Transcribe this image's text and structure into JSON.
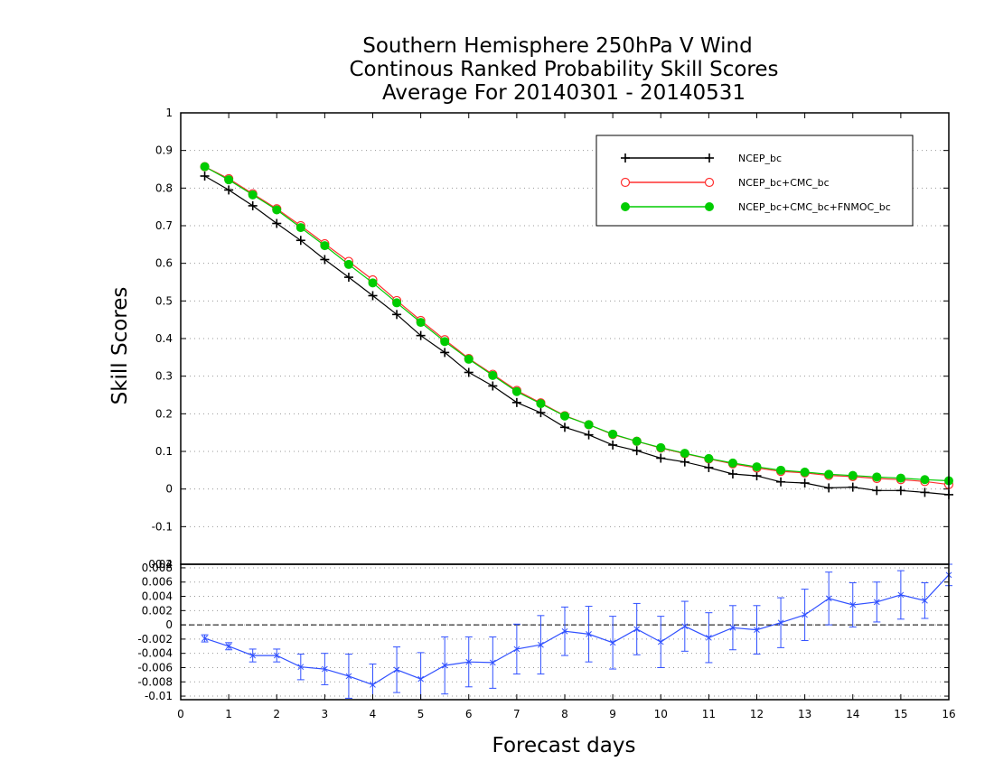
{
  "chart_data": [
    {
      "type": "line",
      "title": [
        "Southern Hemisphere 250hPa V Wind",
        "Continous Ranked Probability Skill Scores",
        "Average For 20140301 - 20140531"
      ],
      "xlabel": "Forecast days",
      "ylabel": "Skill Scores",
      "xlim": [
        0,
        16
      ],
      "ylim": [
        -0.2,
        1
      ],
      "xticks": [
        "0",
        "1",
        "2",
        "3",
        "4",
        "5",
        "6",
        "7",
        "8",
        "9",
        "10",
        "11",
        "12",
        "13",
        "14",
        "15",
        "16"
      ],
      "yticks": [
        "-0.2",
        "-0.1",
        "0",
        "0.1",
        "0.2",
        "0.3",
        "0.4",
        "0.5",
        "0.6",
        "0.7",
        "0.8",
        "0.9",
        "1"
      ],
      "grid": true,
      "legend_position": "top-right",
      "x": [
        0.5,
        1,
        1.5,
        2,
        2.5,
        3,
        3.5,
        4,
        4.5,
        5,
        5.5,
        6,
        6.5,
        7,
        7.5,
        8,
        8.5,
        9,
        9.5,
        10,
        10.5,
        11,
        11.5,
        12,
        12.5,
        13,
        13.5,
        14,
        14.5,
        15,
        15.5,
        16
      ],
      "series": [
        {
          "name": "NCEP_bc",
          "color": "#000000",
          "marker": "plus",
          "values": [
            0.832,
            0.795,
            0.753,
            0.706,
            0.661,
            0.61,
            0.563,
            0.514,
            0.464,
            0.408,
            0.363,
            0.31,
            0.274,
            0.23,
            0.203,
            0.164,
            0.144,
            0.117,
            0.102,
            0.082,
            0.072,
            0.057,
            0.04,
            0.035,
            0.019,
            0.016,
            0.003,
            0.005,
            -0.004,
            -0.004,
            -0.009,
            -0.015
          ]
        },
        {
          "name": "NCEP_bc+CMC_bc",
          "color": "#ff3030",
          "marker": "open-circle",
          "values": [
            0.857,
            0.825,
            0.785,
            0.745,
            0.7,
            0.652,
            0.605,
            0.556,
            0.501,
            0.448,
            0.397,
            0.347,
            0.305,
            0.262,
            0.229,
            0.195,
            0.171,
            0.145,
            0.127,
            0.109,
            0.094,
            0.08,
            0.067,
            0.056,
            0.047,
            0.043,
            0.036,
            0.033,
            0.028,
            0.025,
            0.02,
            0.012
          ]
        },
        {
          "name": "NCEP_bc+CMC_bc+FNMOC_bc",
          "color": "#00cc00",
          "marker": "filled-circle",
          "values": [
            0.857,
            0.822,
            0.782,
            0.742,
            0.695,
            0.647,
            0.597,
            0.548,
            0.495,
            0.443,
            0.392,
            0.345,
            0.302,
            0.259,
            0.227,
            0.194,
            0.171,
            0.146,
            0.127,
            0.11,
            0.095,
            0.081,
            0.069,
            0.059,
            0.05,
            0.045,
            0.039,
            0.036,
            0.032,
            0.029,
            0.025,
            0.022
          ]
        }
      ]
    },
    {
      "type": "line",
      "ylim": [
        -0.0105,
        0.0085
      ],
      "yticks": [
        "-0.01",
        "-0.008",
        "-0.006",
        "-0.004",
        "-0.002",
        "0",
        "0.002",
        "0.004",
        "0.006",
        "0.008"
      ],
      "top_tick_label": "0.04",
      "x": [
        0.5,
        1,
        1.5,
        2,
        2.5,
        3,
        3.5,
        4,
        4.5,
        5,
        5.5,
        6,
        6.5,
        7,
        7.5,
        8,
        8.5,
        9,
        9.5,
        10,
        10.5,
        11,
        11.5,
        12,
        12.5,
        13,
        13.5,
        14,
        14.5,
        15,
        15.5,
        16
      ],
      "series": [
        {
          "color": "#3050ff",
          "error_bars": true,
          "values": [
            -0.0019,
            -0.003,
            -0.0043,
            -0.0043,
            -0.0059,
            -0.0062,
            -0.0072,
            -0.0084,
            -0.0063,
            -0.0076,
            -0.0057,
            -0.0052,
            -0.0053,
            -0.0034,
            -0.0028,
            -0.0009,
            -0.0013,
            -0.0025,
            -0.0006,
            -0.0024,
            -0.0002,
            -0.0018,
            -0.0004,
            -0.0007,
            0.0003,
            0.0014,
            0.0037,
            0.0028,
            0.0032,
            0.0042,
            0.0034,
            0.007
          ],
          "errors": [
            0.0005,
            0.0005,
            0.0009,
            0.0009,
            0.0018,
            0.0022,
            0.0031,
            0.0029,
            0.0032,
            0.0037,
            0.004,
            0.0035,
            0.0036,
            0.0035,
            0.0041,
            0.0034,
            0.0039,
            0.0037,
            0.0036,
            0.0036,
            0.0035,
            0.0035,
            0.0031,
            0.0034,
            0.0035,
            0.0036,
            0.0037,
            0.0031,
            0.0028,
            0.0034,
            0.0025,
            0.0015
          ]
        }
      ]
    }
  ]
}
